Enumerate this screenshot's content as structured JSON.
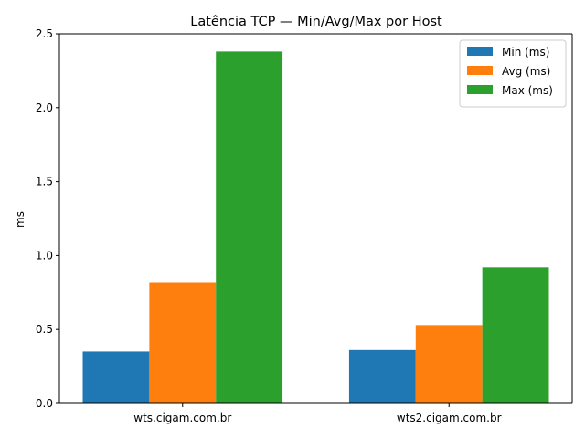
{
  "chart_data": {
    "type": "bar",
    "title": "Latência TCP — Min/Avg/Max por Host",
    "xlabel": "",
    "ylabel": "ms",
    "categories": [
      "wts.cigam.com.br",
      "wts2.cigam.com.br"
    ],
    "series": [
      {
        "name": "Min (ms)",
        "values": [
          0.35,
          0.36
        ],
        "color": "#1f77b4"
      },
      {
        "name": "Avg (ms)",
        "values": [
          0.82,
          0.53
        ],
        "color": "#ff7f0e"
      },
      {
        "name": "Max (ms)",
        "values": [
          2.38,
          0.92
        ],
        "color": "#2ca02c"
      }
    ],
    "ylim": [
      0,
      2.5
    ],
    "yticks": [
      "0.0",
      "0.5",
      "1.0",
      "1.5",
      "2.0",
      "2.5"
    ],
    "grid": false,
    "legend": "top-right"
  }
}
